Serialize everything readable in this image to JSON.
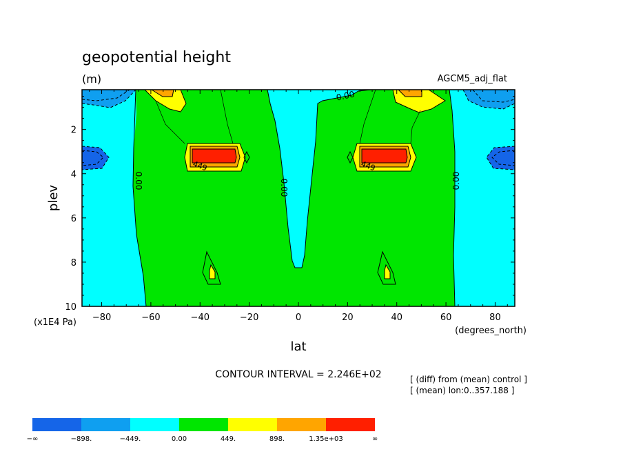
{
  "chart_data": {
    "type": "contour",
    "title": "geopotential height",
    "units": "(m)",
    "experiment": "AGCM5_adj_flat",
    "xlabel": "lat",
    "x_units": "(degrees_north)",
    "ylabel": "plev",
    "y_units": "(x1E4 Pa)",
    "xlim": [
      -88,
      88
    ],
    "ylim": [
      10,
      0.2
    ],
    "xticks": [
      -80,
      -60,
      -40,
      -20,
      0,
      20,
      40,
      60,
      80
    ],
    "xtick_labels": [
      "−80",
      "−60",
      "−40",
      "−20",
      "0",
      "20",
      "40",
      "60",
      "80"
    ],
    "yticks": [
      2,
      4,
      6,
      8,
      10
    ],
    "ytick_labels": [
      "2",
      "4",
      "6",
      "8",
      "10"
    ],
    "contour_interval_text": "CONTOUR INTERVAL = 2.246E+02",
    "annotation_lines": [
      "[ (diff) from (mean) control ]",
      "[ (mean) lon:0..357.188 ]"
    ],
    "contour_labels": [
      "0.00",
      "0.00",
      "0.00",
      "0.00",
      "449",
      "449"
    ],
    "levels": [
      -898.4,
      -449.2,
      0.0,
      449.2,
      898.4,
      1347.6
    ],
    "colorbar": {
      "labels": [
        "−∞",
        "−898.",
        "−449.",
        "0.00",
        "449.",
        "898.",
        "1.35e+03",
        "∞"
      ],
      "colors": [
        "#1565e8",
        "#0f9ff0",
        "#00ffff",
        "#00e600",
        "#ffff00",
        "#ffa500",
        "#ff1f00"
      ]
    }
  }
}
